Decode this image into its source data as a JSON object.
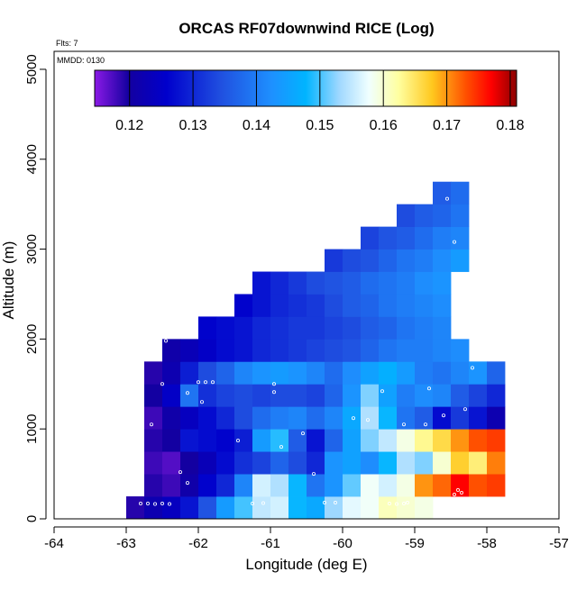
{
  "chart_data": {
    "type": "heatmap",
    "title": "ORCAS RF07downwind RICE (Log)",
    "flights_label": "Flts: 7",
    "date_label": "MMDD: 0130",
    "xlabel": "Longitude (deg E)",
    "ylabel": "Altitude (m)",
    "xlim": [
      -64,
      -57
    ],
    "ylim": [
      0,
      5200
    ],
    "x_ticks": [
      -64,
      -63,
      -62,
      -61,
      -60,
      -59,
      -58,
      -57
    ],
    "y_ticks": [
      0,
      1000,
      2000,
      3000,
      4000,
      5000
    ],
    "x_cell_deg": 0.25,
    "y_cell_m": 250,
    "colorbar": {
      "min": 0.1145,
      "max": 0.181,
      "ticks": [
        0.12,
        0.13,
        0.14,
        0.15,
        0.16,
        0.17,
        0.18
      ],
      "tick_labels": [
        "0.12",
        "0.13",
        "0.14",
        "0.15",
        "0.16",
        "0.17",
        "0.18"
      ],
      "stops": [
        [
          0.0,
          "#8b1ae6"
        ],
        [
          0.08,
          "#1400a0"
        ],
        [
          0.17,
          "#0000cc"
        ],
        [
          0.3,
          "#2050e0"
        ],
        [
          0.42,
          "#1e90ff"
        ],
        [
          0.5,
          "#00b4ff"
        ],
        [
          0.58,
          "#a0d8ff"
        ],
        [
          0.65,
          "#f0ffff"
        ],
        [
          0.72,
          "#ffffa0"
        ],
        [
          0.8,
          "#ffc81e"
        ],
        [
          0.88,
          "#ff5000"
        ],
        [
          0.94,
          "#ff0000"
        ],
        [
          1.0,
          "#8b0000"
        ]
      ]
    },
    "rows": [
      {
        "alt_bottom": 0,
        "lon_start": -63.0,
        "values": [
          0.119,
          0.122,
          0.124,
          0.128,
          0.135,
          0.144,
          0.15,
          0.155,
          0.156,
          0.148,
          0.146,
          0.153,
          0.157,
          0.158,
          0.161,
          0.16,
          0.159
        ]
      },
      {
        "alt_bottom": 250,
        "lon_start": -62.75,
        "values": [
          0.119,
          0.118,
          0.121,
          0.126,
          0.13,
          0.141,
          0.156,
          0.154,
          0.148,
          0.139,
          0.143,
          0.151,
          0.158,
          0.156,
          0.159,
          0.17,
          0.172,
          0.177,
          0.173,
          0.174
        ]
      },
      {
        "alt_bottom": 500,
        "lon_start": -62.75,
        "values": [
          0.118,
          0.117,
          0.12,
          0.123,
          0.127,
          0.131,
          0.133,
          0.137,
          0.134,
          0.13,
          0.143,
          0.145,
          0.142,
          0.148,
          0.154,
          0.152,
          0.16,
          0.167,
          0.164,
          0.171
        ]
      },
      {
        "alt_bottom": 750,
        "lon_start": -62.75,
        "values": [
          0.119,
          0.12,
          0.128,
          0.127,
          0.126,
          0.129,
          0.144,
          0.149,
          0.136,
          0.128,
          0.137,
          0.145,
          0.152,
          0.155,
          0.159,
          0.163,
          0.166,
          0.17,
          0.173,
          0.174
        ]
      },
      {
        "alt_bottom": 1000,
        "lon_start": -62.75,
        "values": [
          0.118,
          0.121,
          0.124,
          0.127,
          0.13,
          0.134,
          0.138,
          0.14,
          0.141,
          0.138,
          0.141,
          0.146,
          0.154,
          0.148,
          0.139,
          0.136,
          0.127,
          0.132,
          0.128,
          0.122
        ]
      },
      {
        "alt_bottom": 1250,
        "lon_start": -62.75,
        "values": [
          0.12,
          0.125,
          0.139,
          0.131,
          0.133,
          0.134,
          0.133,
          0.134,
          0.134,
          0.133,
          0.137,
          0.143,
          0.152,
          0.145,
          0.14,
          0.142,
          0.141,
          0.136,
          0.133,
          0.13
        ]
      },
      {
        "alt_bottom": 1500,
        "lon_start": -62.75,
        "values": [
          0.119,
          0.122,
          0.129,
          0.134,
          0.137,
          0.141,
          0.143,
          0.144,
          0.143,
          0.141,
          0.138,
          0.142,
          0.145,
          0.147,
          0.144,
          0.14,
          0.139,
          0.141,
          0.143,
          0.137
        ]
      },
      {
        "alt_bottom": 1750,
        "lon_start": -62.5,
        "values": [
          0.121,
          0.123,
          0.125,
          0.127,
          0.128,
          0.13,
          0.131,
          0.132,
          0.133,
          0.134,
          0.135,
          0.137,
          0.139,
          0.14,
          0.14,
          0.141,
          0.142
        ]
      },
      {
        "alt_bottom": 2000,
        "lon_start": -62.0,
        "values": [
          0.126,
          0.127,
          0.128,
          0.13,
          0.131,
          0.132,
          0.132,
          0.133,
          0.134,
          0.136,
          0.137,
          0.139,
          0.14,
          0.141
        ]
      },
      {
        "alt_bottom": 2250,
        "lon_start": -61.5,
        "values": [
          0.126,
          0.128,
          0.13,
          0.131,
          0.132,
          0.134,
          0.136,
          0.137,
          0.139,
          0.14,
          0.141,
          0.142
        ]
      },
      {
        "alt_bottom": 2500,
        "lon_start": -61.25,
        "values": [
          0.128,
          0.13,
          0.132,
          0.134,
          0.135,
          0.136,
          0.138,
          0.139,
          0.14,
          0.142,
          0.143
        ]
      },
      {
        "alt_bottom": 2750,
        "lon_start": -60.25,
        "values": [
          0.132,
          0.134,
          0.135,
          0.137,
          0.139,
          0.14,
          0.142,
          0.144
        ]
      },
      {
        "alt_bottom": 3000,
        "lon_start": -59.75,
        "values": [
          0.133,
          0.135,
          0.136,
          0.138,
          0.14,
          0.141
        ]
      },
      {
        "alt_bottom": 3250,
        "lon_start": -59.25,
        "values": [
          0.134,
          0.136,
          0.137,
          0.139
        ]
      },
      {
        "alt_bottom": 3500,
        "lon_start": -58.75,
        "values": [
          0.136,
          0.138
        ]
      }
    ],
    "flight_track": [
      [
        -62.8,
        170
      ],
      [
        -62.7,
        170
      ],
      [
        -62.6,
        165
      ],
      [
        -62.5,
        170
      ],
      [
        -62.4,
        165
      ],
      [
        -62.15,
        400
      ],
      [
        -62.25,
        520
      ],
      [
        -62.8,
        580
      ],
      [
        -62.65,
        1050
      ],
      [
        -62.5,
        1500
      ],
      [
        -62.45,
        1980
      ],
      [
        -62.15,
        1400
      ],
      [
        -62.0,
        1520
      ],
      [
        -61.9,
        1520
      ],
      [
        -61.8,
        1520
      ],
      [
        -61.95,
        1300
      ],
      [
        -61.25,
        170
      ],
      [
        -61.1,
        175
      ],
      [
        -61.45,
        870
      ],
      [
        -60.95,
        1500
      ],
      [
        -60.95,
        1410
      ],
      [
        -60.85,
        800
      ],
      [
        -60.55,
        950
      ],
      [
        -60.4,
        500
      ],
      [
        -60.25,
        180
      ],
      [
        -60.1,
        180
      ],
      [
        -59.85,
        1120
      ],
      [
        -59.65,
        1100
      ],
      [
        -59.45,
        1420
      ],
      [
        -59.35,
        170
      ],
      [
        -59.25,
        165
      ],
      [
        -59.15,
        170
      ],
      [
        -59.1,
        180
      ],
      [
        -59.15,
        1050
      ],
      [
        -58.85,
        1050
      ],
      [
        -58.6,
        1150
      ],
      [
        -58.4,
        320
      ],
      [
        -58.35,
        290
      ],
      [
        -58.45,
        270
      ],
      [
        -58.3,
        1220
      ],
      [
        -58.2,
        1680
      ],
      [
        -58.25,
        2150
      ],
      [
        -58.35,
        2620
      ],
      [
        -58.45,
        3080
      ],
      [
        -58.55,
        3560
      ],
      [
        -58.8,
        1450
      ]
    ]
  }
}
